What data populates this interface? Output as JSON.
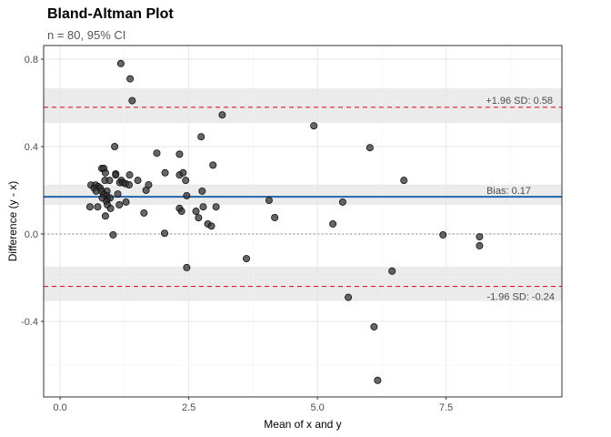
{
  "chart_data": {
    "type": "scatter",
    "title": "Bland-Altman Plot",
    "subtitle": "n = 80, 95% CI",
    "xlabel": "Mean of x and y",
    "ylabel": "Difference (y - x)",
    "xlim": [
      -0.32,
      9.75
    ],
    "ylim": [
      -0.746,
      0.8625
    ],
    "xticks": [
      0,
      2.5,
      5,
      7.5
    ],
    "xtick_labels": [
      "0.0",
      "2.5",
      "5.0",
      "7.5"
    ],
    "yticks": [
      0.8,
      0.4,
      0,
      -0.4
    ],
    "ytick_labels": [
      "0.8",
      "0.4",
      "0.0",
      "-0.4"
    ],
    "grid": true,
    "reference_lines": {
      "bias": {
        "value": 0.17,
        "label": "Bias: 0.17",
        "color": "#2166ac",
        "ci": [
          0.133,
          0.226
        ]
      },
      "upper_loa": {
        "value": 0.58,
        "label": "+1.96 SD: 0.58",
        "color": "#e41a1c",
        "ci": [
          0.508,
          0.667
        ]
      },
      "lower_loa": {
        "value": -0.24,
        "label": "-1.96 SD: -0.24",
        "color": "#e41a1c",
        "ci": [
          -0.307,
          -0.149
        ]
      },
      "zero": {
        "value": 0
      }
    },
    "point_color": "#333333",
    "points": [
      [
        1.06,
        0.4
      ],
      [
        1.88,
        0.37
      ],
      [
        2.32,
        0.365
      ],
      [
        2.74,
        0.445
      ],
      [
        2.97,
        0.315
      ],
      [
        0.81,
        0.3
      ],
      [
        0.85,
        0.3
      ],
      [
        0.88,
        0.28
      ],
      [
        1.08,
        0.275
      ],
      [
        1.08,
        0.27
      ],
      [
        1.35,
        0.27
      ],
      [
        2.04,
        0.28
      ],
      [
        2.32,
        0.27
      ],
      [
        2.39,
        0.28
      ],
      [
        2.44,
        0.245
      ],
      [
        0.87,
        0.245
      ],
      [
        0.96,
        0.245
      ],
      [
        1.19,
        0.245
      ],
      [
        1.16,
        0.235
      ],
      [
        1.22,
        0.235
      ],
      [
        1.27,
        0.23
      ],
      [
        1.34,
        0.225
      ],
      [
        1.51,
        0.245
      ],
      [
        1.72,
        0.225
      ],
      [
        1.67,
        0.2
      ],
      [
        0.6,
        0.224
      ],
      [
        0.69,
        0.224
      ],
      [
        0.74,
        0.217
      ],
      [
        0.66,
        0.21
      ],
      [
        0.78,
        0.21
      ],
      [
        0.7,
        0.196
      ],
      [
        0.81,
        0.196
      ],
      [
        0.91,
        0.196
      ],
      [
        0.85,
        0.18
      ],
      [
        0.9,
        0.175
      ],
      [
        0.92,
        0.16
      ],
      [
        0.97,
        0.165
      ],
      [
        0.82,
        0.165
      ],
      [
        0.9,
        0.15
      ],
      [
        1.12,
        0.183
      ],
      [
        2.76,
        0.196
      ],
      [
        2.46,
        0.175
      ],
      [
        1.28,
        0.146
      ],
      [
        1.15,
        0.133
      ],
      [
        0.92,
        0.133
      ],
      [
        0.98,
        0.117
      ],
      [
        0.58,
        0.124
      ],
      [
        0.73,
        0.124
      ],
      [
        0.88,
        0.082
      ],
      [
        1.63,
        0.096
      ],
      [
        2.32,
        0.117
      ],
      [
        2.36,
        0.104
      ],
      [
        2.64,
        0.104
      ],
      [
        2.69,
        0.074
      ],
      [
        2.78,
        0.124
      ],
      [
        3.03,
        0.124
      ],
      [
        2.87,
        0.046
      ],
      [
        2.94,
        0.036
      ],
      [
        1.03,
        -0.004
      ],
      [
        2.03,
        0.003
      ],
      [
        1.18,
        0.78
      ],
      [
        1.36,
        0.71
      ],
      [
        1.4,
        0.61
      ],
      [
        3.15,
        0.545
      ],
      [
        4.93,
        0.495
      ],
      [
        6.02,
        0.395
      ],
      [
        6.68,
        0.245
      ],
      [
        4.06,
        0.154
      ],
      [
        4.17,
        0.075
      ],
      [
        5.3,
        0.046
      ],
      [
        5.49,
        0.146
      ],
      [
        2.46,
        -0.154
      ],
      [
        3.62,
        -0.113
      ],
      [
        5.6,
        -0.29
      ],
      [
        6.45,
        -0.17
      ],
      [
        6.1,
        -0.425
      ],
      [
        6.17,
        -0.67
      ],
      [
        7.44,
        -0.004
      ],
      [
        8.15,
        -0.013
      ],
      [
        8.15,
        -0.054
      ]
    ]
  }
}
